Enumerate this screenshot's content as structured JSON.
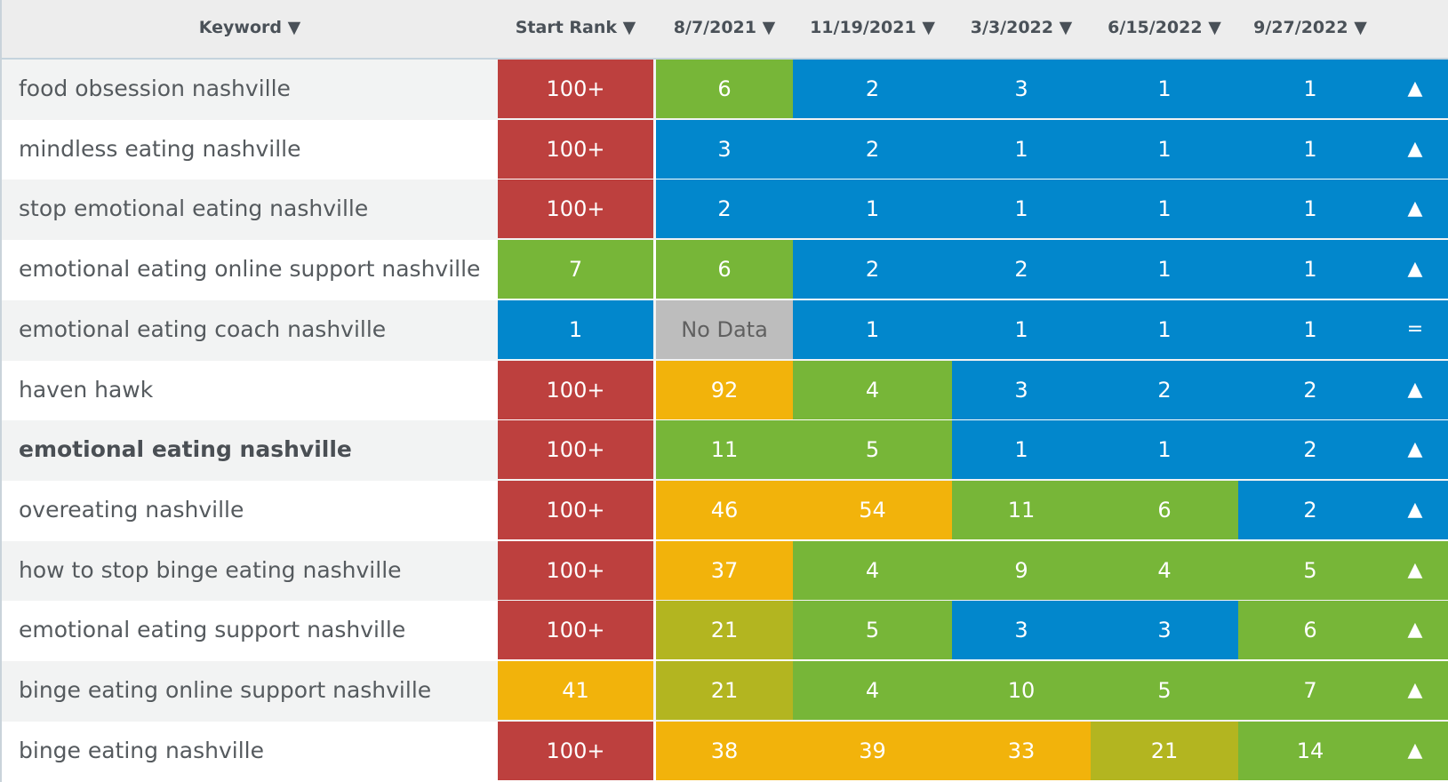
{
  "header": {
    "keyword": "Keyword ▼",
    "start_rank": "Start Rank ▼",
    "dates": [
      "8/7/2021 ▼",
      "11/19/2021 ▼",
      "3/3/2022 ▼",
      "6/15/2022 ▼",
      "9/27/2022 ▼"
    ]
  },
  "colors": {
    "R": "#bd403e",
    "G": "#77b638",
    "B": "#0287cc",
    "Y": "#f2b30b",
    "O": "#b3b520",
    "N": "#bdbdbd"
  },
  "rows": [
    {
      "keyword": "food obsession nashville",
      "start": "100+",
      "start_color": "R",
      "values": [
        "6",
        "2",
        "3",
        "1",
        "1"
      ],
      "value_colors": [
        "G",
        "B",
        "B",
        "B",
        "B"
      ],
      "trend": "▲"
    },
    {
      "keyword": "mindless eating nashville",
      "start": "100+",
      "start_color": "R",
      "values": [
        "3",
        "2",
        "1",
        "1",
        "1"
      ],
      "value_colors": [
        "B",
        "B",
        "B",
        "B",
        "B"
      ],
      "trend": "▲"
    },
    {
      "keyword": "stop emotional eating nashville",
      "start": "100+",
      "start_color": "R",
      "values": [
        "2",
        "1",
        "1",
        "1",
        "1"
      ],
      "value_colors": [
        "B",
        "B",
        "B",
        "B",
        "B"
      ],
      "trend": "▲"
    },
    {
      "keyword": "emotional eating online support nashville",
      "start": "7",
      "start_color": "G",
      "values": [
        "6",
        "2",
        "2",
        "1",
        "1"
      ],
      "value_colors": [
        "G",
        "B",
        "B",
        "B",
        "B"
      ],
      "trend": "▲"
    },
    {
      "keyword": "emotional eating coach nashville",
      "start": "1",
      "start_color": "B",
      "values": [
        "No Data",
        "1",
        "1",
        "1",
        "1"
      ],
      "value_colors": [
        "N",
        "B",
        "B",
        "B",
        "B"
      ],
      "trend": "="
    },
    {
      "keyword": "haven hawk",
      "start": "100+",
      "start_color": "R",
      "values": [
        "92",
        "4",
        "3",
        "2",
        "2"
      ],
      "value_colors": [
        "Y",
        "G",
        "B",
        "B",
        "B"
      ],
      "trend": "▲"
    },
    {
      "keyword": "emotional eating nashville",
      "bold": true,
      "start": "100+",
      "start_color": "R",
      "values": [
        "11",
        "5",
        "1",
        "1",
        "2"
      ],
      "value_colors": [
        "G",
        "G",
        "B",
        "B",
        "B"
      ],
      "trend": "▲"
    },
    {
      "keyword": "overeating nashville",
      "start": "100+",
      "start_color": "R",
      "values": [
        "46",
        "54",
        "11",
        "6",
        "2"
      ],
      "value_colors": [
        "Y",
        "Y",
        "G",
        "G",
        "B"
      ],
      "trend": "▲"
    },
    {
      "keyword": "how to stop binge eating nashville",
      "start": "100+",
      "start_color": "R",
      "values": [
        "37",
        "4",
        "9",
        "4",
        "5"
      ],
      "value_colors": [
        "Y",
        "G",
        "G",
        "G",
        "G"
      ],
      "trend": "▲"
    },
    {
      "keyword": "emotional eating support nashville",
      "start": "100+",
      "start_color": "R",
      "values": [
        "21",
        "5",
        "3",
        "3",
        "6"
      ],
      "value_colors": [
        "O",
        "G",
        "B",
        "B",
        "G"
      ],
      "trend": "▲"
    },
    {
      "keyword": "binge eating online support nashville",
      "start": "41",
      "start_color": "Y",
      "values": [
        "21",
        "4",
        "10",
        "5",
        "7"
      ],
      "value_colors": [
        "O",
        "G",
        "G",
        "G",
        "G"
      ],
      "trend": "▲"
    },
    {
      "keyword": "binge eating nashville",
      "start": "100+",
      "start_color": "R",
      "values": [
        "38",
        "39",
        "33",
        "21",
        "14"
      ],
      "value_colors": [
        "Y",
        "Y",
        "Y",
        "O",
        "G"
      ],
      "trend": "▲"
    }
  ]
}
